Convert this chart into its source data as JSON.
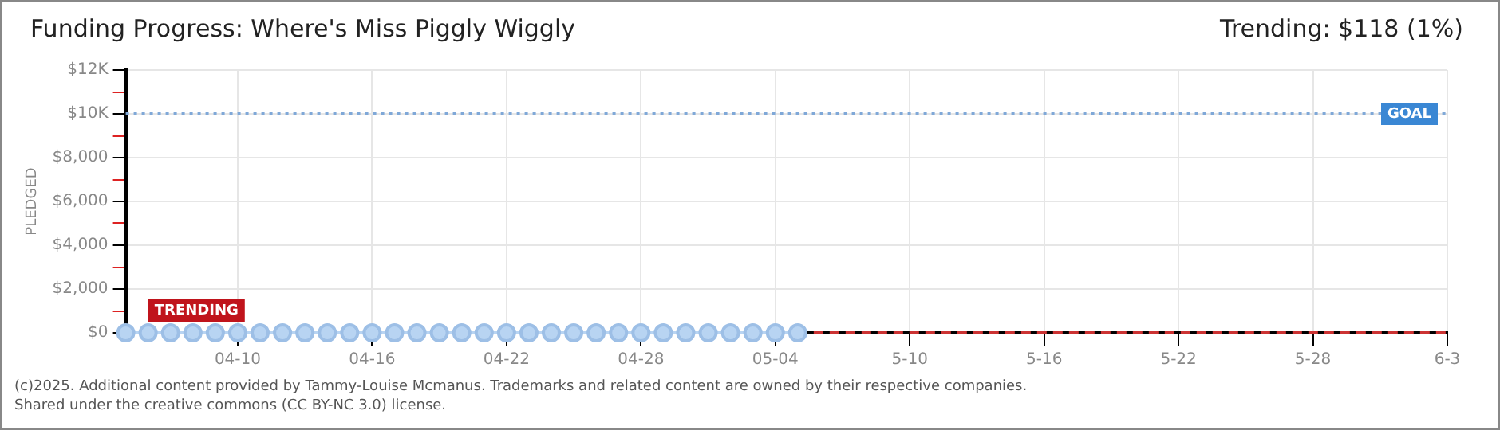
{
  "chart_data": {
    "type": "line",
    "title": "Funding Progress: Where's Miss Piggly Wiggly",
    "subtitle": "Trending: $118 (1%)",
    "ylabel": "PLEDGED",
    "x": [
      "2025-04-05",
      "2025-04-06",
      "2025-04-07",
      "2025-04-08",
      "2025-04-09",
      "2025-04-10",
      "2025-04-11",
      "2025-04-12",
      "2025-04-13",
      "2025-04-14",
      "2025-04-15",
      "2025-04-16",
      "2025-04-17",
      "2025-04-18",
      "2025-04-19",
      "2025-04-20",
      "2025-04-21",
      "2025-04-22",
      "2025-04-23",
      "2025-04-24",
      "2025-04-25",
      "2025-04-26",
      "2025-04-27",
      "2025-04-28",
      "2025-04-29",
      "2025-04-30",
      "2025-05-01",
      "2025-05-02",
      "2025-05-03",
      "2025-05-04",
      "2025-05-05"
    ],
    "series": [
      {
        "color": "#b8d4f2",
        "marker": "circle",
        "line_style": "solid",
        "values": [
          0,
          0,
          0,
          0,
          0,
          0,
          0,
          0,
          0,
          0,
          0,
          0,
          0,
          0,
          0,
          0,
          0,
          0,
          0,
          0,
          0,
          0,
          0,
          0,
          0,
          0,
          0,
          0,
          0,
          0,
          0
        ]
      },
      {
        "color": "#cc3333",
        "marker": "none",
        "line_style": "dashed",
        "x": [
          "2025-05-05",
          "2025-06-03"
        ],
        "values": [
          0,
          0
        ]
      }
    ],
    "xlim": [
      "2025-04-05",
      "2025-06-03"
    ],
    "xticks": [
      {
        "value": "2025-04-10",
        "label": "04-10"
      },
      {
        "value": "2025-04-16",
        "label": "04-16"
      },
      {
        "value": "2025-04-22",
        "label": "04-22"
      },
      {
        "value": "2025-04-28",
        "label": "04-28"
      },
      {
        "value": "2025-05-04",
        "label": "05-04"
      },
      {
        "value": "2025-05-10",
        "label": "5-10"
      },
      {
        "value": "2025-05-16",
        "label": "5-16"
      },
      {
        "value": "2025-05-22",
        "label": "5-22"
      },
      {
        "value": "2025-05-28",
        "label": "5-28"
      },
      {
        "value": "2025-06-03",
        "label": "6-3"
      }
    ],
    "ylim": [
      0,
      12000
    ],
    "yticks": [
      {
        "value": 0,
        "label": "$0"
      },
      {
        "value": 1000,
        "label": null
      },
      {
        "value": 2000,
        "label": "$2,000"
      },
      {
        "value": 3000,
        "label": null
      },
      {
        "value": 4000,
        "label": "$4,000"
      },
      {
        "value": 5000,
        "label": null
      },
      {
        "value": 6000,
        "label": "$6,000"
      },
      {
        "value": 7000,
        "label": null
      },
      {
        "value": 8000,
        "label": "$8,000"
      },
      {
        "value": 9000,
        "label": null
      },
      {
        "value": 10000,
        "label": "$10K"
      },
      {
        "value": 11000,
        "label": null
      },
      {
        "value": 12000,
        "label": "$12K"
      }
    ],
    "grid": true,
    "legend": false,
    "ref_lines": [
      {
        "axis": "y",
        "value": 10000,
        "label": "GOAL",
        "color": "#7fa8d8",
        "line_style": "dotted"
      }
    ],
    "annotations": [
      {
        "text": "TRENDING",
        "x": "2025-04-08",
        "y": 0
      },
      "(c)2025. Additional content provided by Tammy-Louise Mcmanus. Trademarks and related content are owned by their respective companies.",
      "Shared under the creative commons (CC BY-NC 3.0) license."
    ]
  }
}
